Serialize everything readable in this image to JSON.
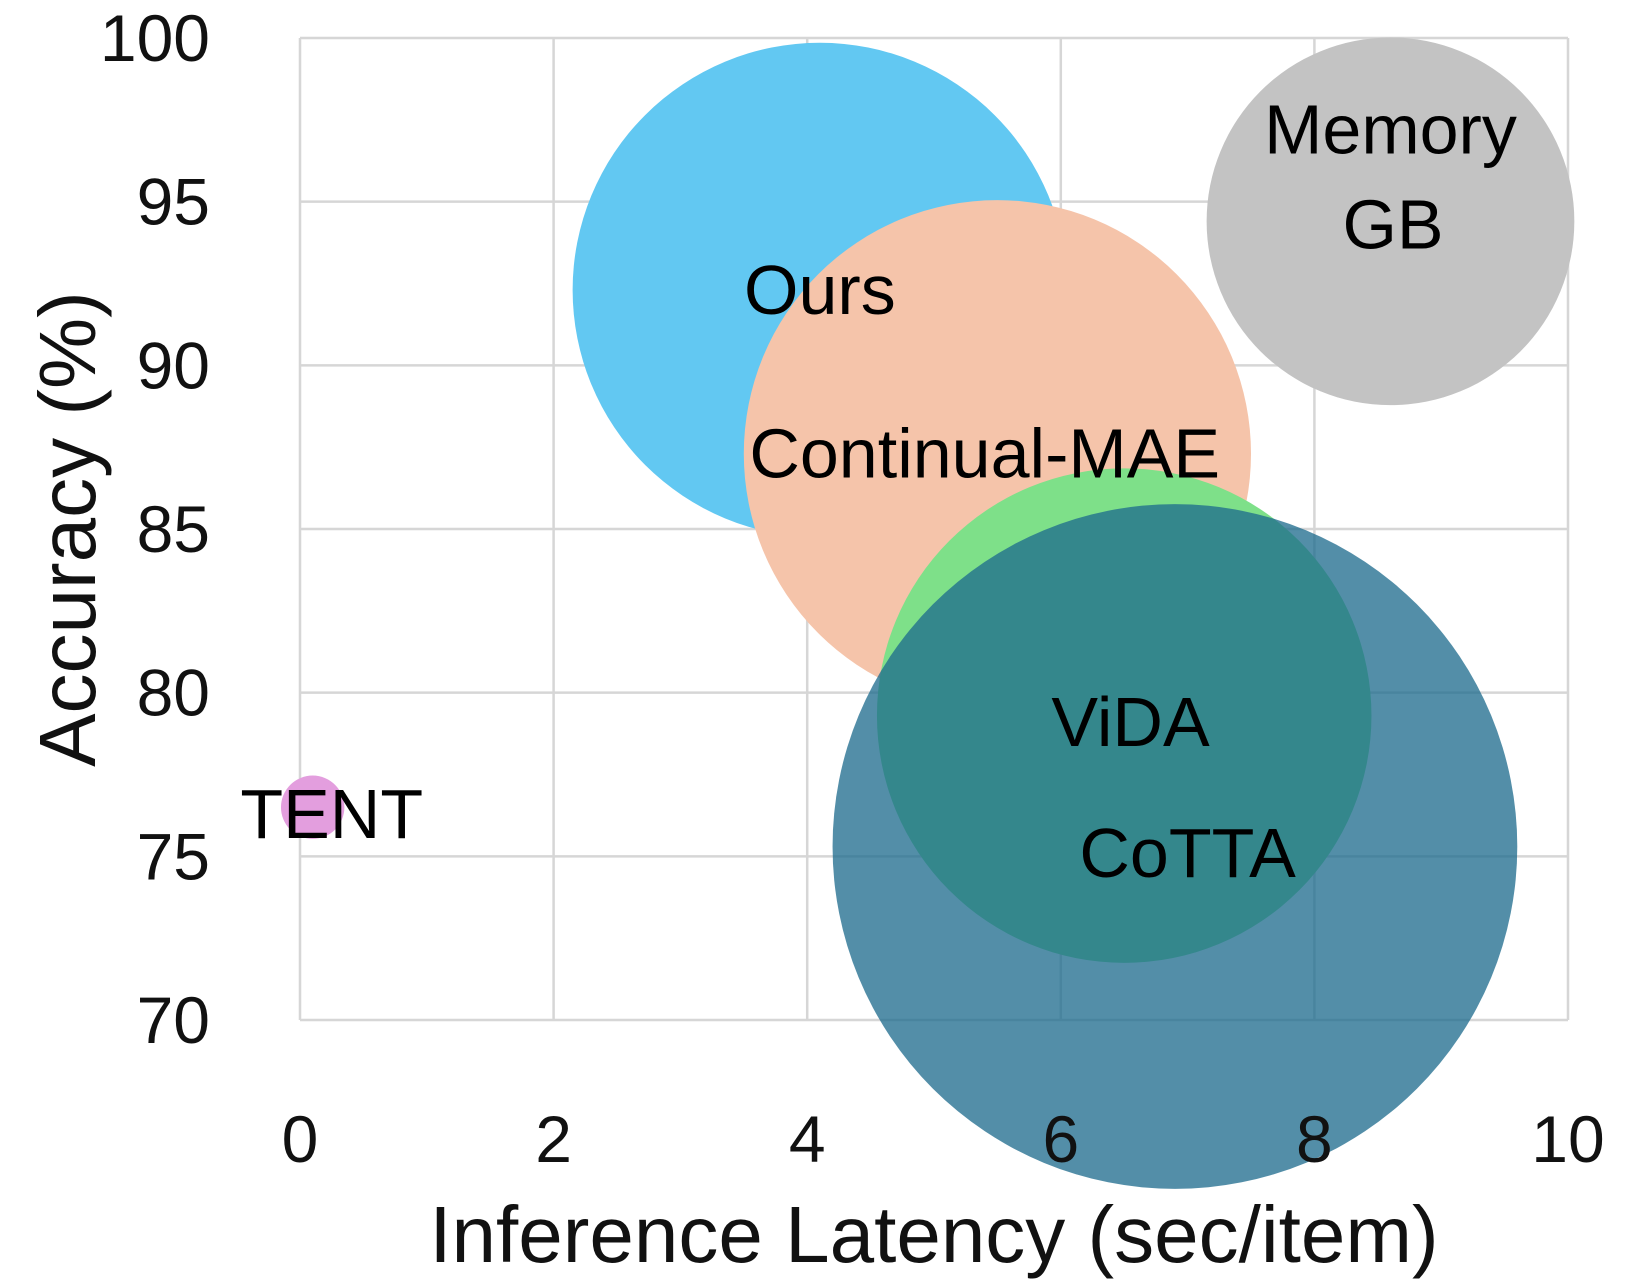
{
  "chart_data": {
    "type": "scatter",
    "subtype": "bubble",
    "title": "",
    "xlabel": "Inference Latency (sec/item)",
    "ylabel": "Accuracy (%)",
    "xlim": [
      0,
      10
    ],
    "ylim": [
      70,
      100
    ],
    "xticks": [
      "0",
      "2",
      "4",
      "6",
      "8",
      "10"
    ],
    "yticks": [
      "70",
      "75",
      "80",
      "85",
      "90",
      "95",
      "100"
    ],
    "grid": true,
    "legend": "none",
    "points": [
      {
        "name": "TENT",
        "x": 0.1,
        "y": 76.5,
        "size": 0.5,
        "color": "#e39ede",
        "opacity": 1.0
      },
      {
        "name": "Ours",
        "x": 4.1,
        "y": 92.3,
        "size": 3.9,
        "color": "#62c8f2",
        "opacity": 1.0
      },
      {
        "name": "Continual-MAE",
        "x": 5.5,
        "y": 87.3,
        "size": 4.0,
        "color": "#f5c4aa",
        "opacity": 1.0
      },
      {
        "name": "ViDA",
        "x": 6.5,
        "y": 79.3,
        "size": 3.9,
        "color": "#7ee089",
        "opacity": 1.0
      },
      {
        "name": "CoTTA",
        "x": 6.9,
        "y": 75.3,
        "size": 5.4,
        "color": "#1d6a8c",
        "opacity": 0.76
      },
      {
        "name": "Memory",
        "x": 8.6,
        "y": 94.4,
        "size": 2.9,
        "color": "#c3c3c3",
        "opacity": 1.0
      }
    ],
    "annotations": [
      {
        "text": "TENT",
        "x": 0.25,
        "y": 76.3
      },
      {
        "text": "Ours",
        "x": 4.1,
        "y": 92.3
      },
      {
        "text": "Continual-MAE",
        "x": 5.4,
        "y": 87.3
      },
      {
        "text": "ViDA",
        "x": 6.55,
        "y": 79.1
      },
      {
        "text": "CoTTA",
        "x": 7.0,
        "y": 75.1
      },
      {
        "text": "Memory",
        "x": 8.6,
        "y": 97.2
      },
      {
        "text": "GB",
        "x": 8.62,
        "y": 94.3
      }
    ]
  }
}
